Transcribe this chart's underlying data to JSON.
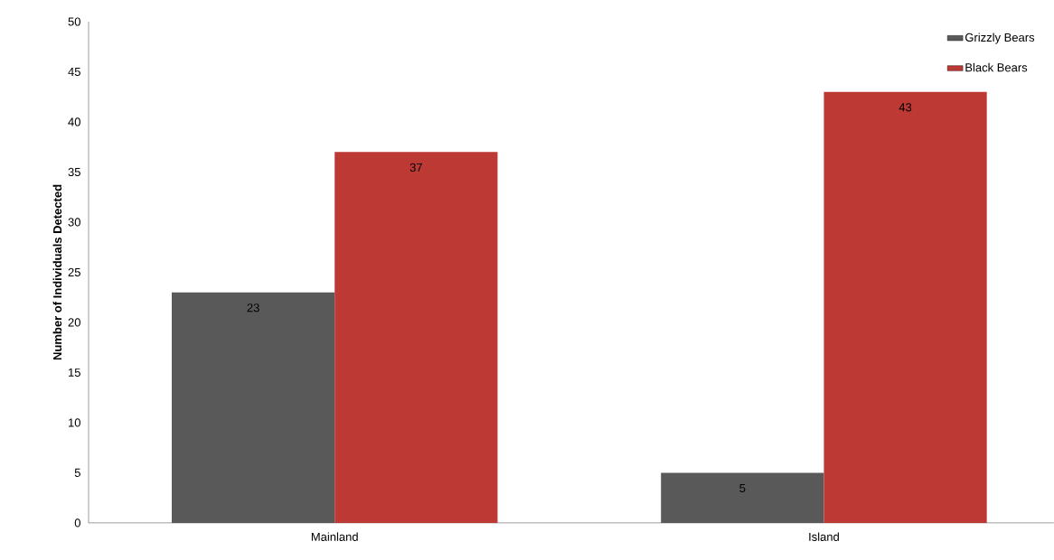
{
  "chart_data": {
    "type": "bar",
    "ylabel": "Number of Individuals Detected",
    "categories": [
      "Mainland",
      "Island"
    ],
    "series": [
      {
        "name": "Grizzly Bears",
        "color": "#595959",
        "values": [
          23,
          5
        ]
      },
      {
        "name": "Black Bears",
        "color": "#bd3934",
        "values": [
          37,
          43
        ]
      }
    ],
    "ylim": [
      0,
      50
    ],
    "yticks": [
      0,
      5,
      10,
      15,
      20,
      25,
      30,
      35,
      40,
      45,
      50
    ],
    "data_labels": true,
    "legend": "top right"
  }
}
